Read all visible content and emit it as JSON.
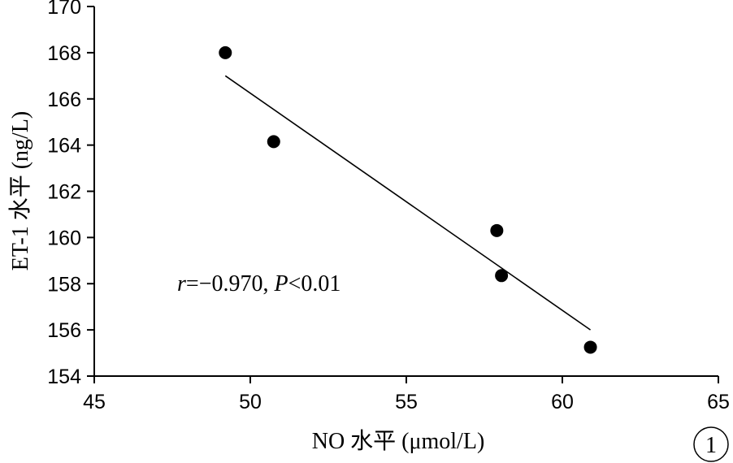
{
  "chart_data": {
    "type": "scatter",
    "xlabel": "NO 水平 (μmol/L)",
    "ylabel": "ET-1 水平 (ng/L)",
    "xlim": [
      45,
      65
    ],
    "ylim": [
      154,
      170
    ],
    "xticks": [
      45,
      50,
      55,
      60,
      65
    ],
    "yticks": [
      154,
      156,
      158,
      160,
      162,
      164,
      166,
      168,
      170
    ],
    "grid": false,
    "series": [
      {
        "points": [
          {
            "x": 49.2,
            "y": 168.0
          },
          {
            "x": 50.75,
            "y": 164.15
          },
          {
            "x": 57.9,
            "y": 160.3
          },
          {
            "x": 58.05,
            "y": 158.35
          },
          {
            "x": 60.9,
            "y": 155.25
          }
        ]
      }
    ],
    "trendline": {
      "x": [
        49.2,
        60.9
      ],
      "y": [
        167.0,
        156.0
      ]
    },
    "annotation": {
      "r_symbol": "r",
      "r_value": "=−0.970, ",
      "p_symbol": "P",
      "p_value": "<0.01"
    },
    "panel_label": "1"
  }
}
